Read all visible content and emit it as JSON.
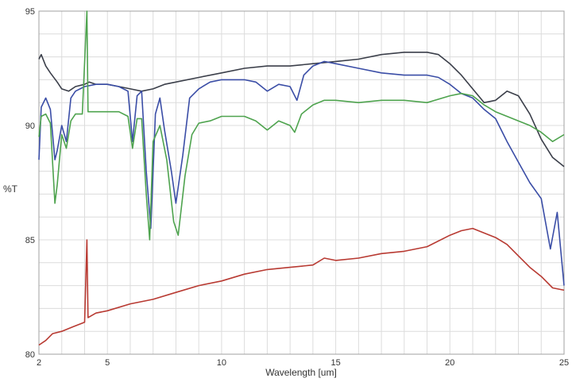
{
  "chart_data": {
    "type": "line",
    "title": "",
    "xlabel": "Wavelength [um]",
    "ylabel": "%T",
    "xlim": [
      2,
      25
    ],
    "ylim": [
      80,
      95
    ],
    "x_ticks": [
      2,
      5,
      10,
      15,
      20,
      25
    ],
    "y_ticks": [
      80,
      85,
      90,
      95
    ],
    "grid": true,
    "series": [
      {
        "color": "#3b3f4a",
        "points": [
          [
            2,
            92.9
          ],
          [
            2.1,
            93.1
          ],
          [
            2.3,
            92.6
          ],
          [
            2.5,
            92.3
          ],
          [
            2.8,
            91.9
          ],
          [
            3.0,
            91.6
          ],
          [
            3.3,
            91.5
          ],
          [
            3.6,
            91.7
          ],
          [
            4.0,
            91.8
          ],
          [
            4.2,
            91.9
          ],
          [
            4.5,
            91.8
          ],
          [
            5.0,
            91.8
          ],
          [
            5.5,
            91.7
          ],
          [
            6.0,
            91.6
          ],
          [
            6.5,
            91.5
          ],
          [
            7.0,
            91.6
          ],
          [
            7.5,
            91.8
          ],
          [
            8.0,
            91.9
          ],
          [
            9.0,
            92.1
          ],
          [
            10.0,
            92.3
          ],
          [
            11.0,
            92.5
          ],
          [
            12.0,
            92.6
          ],
          [
            13.0,
            92.6
          ],
          [
            14.0,
            92.7
          ],
          [
            15.0,
            92.8
          ],
          [
            16.0,
            92.9
          ],
          [
            17.0,
            93.1
          ],
          [
            18.0,
            93.2
          ],
          [
            19.0,
            93.2
          ],
          [
            19.5,
            93.1
          ],
          [
            20.0,
            92.7
          ],
          [
            20.5,
            92.2
          ],
          [
            21.0,
            91.6
          ],
          [
            21.5,
            91.0
          ],
          [
            22.0,
            91.1
          ],
          [
            22.5,
            91.5
          ],
          [
            23.0,
            91.3
          ],
          [
            23.5,
            90.5
          ],
          [
            24.0,
            89.4
          ],
          [
            24.5,
            88.6
          ],
          [
            25.0,
            88.2
          ]
        ]
      },
      {
        "color": "#3a4da6",
        "points": [
          [
            2,
            88.5
          ],
          [
            2.1,
            90.8
          ],
          [
            2.3,
            91.2
          ],
          [
            2.5,
            90.7
          ],
          [
            2.7,
            88.5
          ],
          [
            2.8,
            88.9
          ],
          [
            3.0,
            90.0
          ],
          [
            3.2,
            89.3
          ],
          [
            3.4,
            91.2
          ],
          [
            3.6,
            91.5
          ],
          [
            4.0,
            91.7
          ],
          [
            4.5,
            91.8
          ],
          [
            5.0,
            91.8
          ],
          [
            5.5,
            91.7
          ],
          [
            5.9,
            91.5
          ],
          [
            6.1,
            89.3
          ],
          [
            6.3,
            91.3
          ],
          [
            6.5,
            91.5
          ],
          [
            6.7,
            88.0
          ],
          [
            6.9,
            85.5
          ],
          [
            7.1,
            90.5
          ],
          [
            7.3,
            91.2
          ],
          [
            7.5,
            89.8
          ],
          [
            7.8,
            88.0
          ],
          [
            8.0,
            86.6
          ],
          [
            8.3,
            88.7
          ],
          [
            8.6,
            91.2
          ],
          [
            9.0,
            91.6
          ],
          [
            9.5,
            91.9
          ],
          [
            10.0,
            92.0
          ],
          [
            11.0,
            92.0
          ],
          [
            11.5,
            91.9
          ],
          [
            12.0,
            91.5
          ],
          [
            12.5,
            91.8
          ],
          [
            13.0,
            91.7
          ],
          [
            13.3,
            91.1
          ],
          [
            13.6,
            92.2
          ],
          [
            14.0,
            92.6
          ],
          [
            14.5,
            92.8
          ],
          [
            15.0,
            92.7
          ],
          [
            16.0,
            92.5
          ],
          [
            17.0,
            92.3
          ],
          [
            18.0,
            92.2
          ],
          [
            19.0,
            92.2
          ],
          [
            19.5,
            92.1
          ],
          [
            20.0,
            91.8
          ],
          [
            20.5,
            91.4
          ],
          [
            21.0,
            91.2
          ],
          [
            21.5,
            90.7
          ],
          [
            22.0,
            90.3
          ],
          [
            22.5,
            89.3
          ],
          [
            23.0,
            88.4
          ],
          [
            23.5,
            87.5
          ],
          [
            24.0,
            86.8
          ],
          [
            24.4,
            84.6
          ],
          [
            24.7,
            86.2
          ],
          [
            25.0,
            83.0
          ]
        ]
      },
      {
        "color": "#4ea34e",
        "points": [
          [
            2,
            89.5
          ],
          [
            2.1,
            90.4
          ],
          [
            2.3,
            90.5
          ],
          [
            2.5,
            90.1
          ],
          [
            2.7,
            86.6
          ],
          [
            2.8,
            87.4
          ],
          [
            3.0,
            89.6
          ],
          [
            3.2,
            89.0
          ],
          [
            3.4,
            90.2
          ],
          [
            3.6,
            90.5
          ],
          [
            3.9,
            90.5
          ],
          [
            4.1,
            95.0
          ],
          [
            4.15,
            90.6
          ],
          [
            4.5,
            90.6
          ],
          [
            5.0,
            90.6
          ],
          [
            5.5,
            90.6
          ],
          [
            5.9,
            90.4
          ],
          [
            6.1,
            89.0
          ],
          [
            6.3,
            90.3
          ],
          [
            6.5,
            90.3
          ],
          [
            6.7,
            87.0
          ],
          [
            6.85,
            85.0
          ],
          [
            7.0,
            89.3
          ],
          [
            7.3,
            90.0
          ],
          [
            7.6,
            88.5
          ],
          [
            7.9,
            85.8
          ],
          [
            8.1,
            85.2
          ],
          [
            8.4,
            87.8
          ],
          [
            8.7,
            89.6
          ],
          [
            9.0,
            90.1
          ],
          [
            9.5,
            90.2
          ],
          [
            10.0,
            90.4
          ],
          [
            11.0,
            90.4
          ],
          [
            11.5,
            90.2
          ],
          [
            12.0,
            89.8
          ],
          [
            12.5,
            90.2
          ],
          [
            13.0,
            90.0
          ],
          [
            13.2,
            89.7
          ],
          [
            13.5,
            90.5
          ],
          [
            14.0,
            90.9
          ],
          [
            14.5,
            91.1
          ],
          [
            15.0,
            91.1
          ],
          [
            16.0,
            91.0
          ],
          [
            17.0,
            91.1
          ],
          [
            18.0,
            91.1
          ],
          [
            19.0,
            91.0
          ],
          [
            20.0,
            91.3
          ],
          [
            20.5,
            91.4
          ],
          [
            21.0,
            91.3
          ],
          [
            21.5,
            90.9
          ],
          [
            22.0,
            90.6
          ],
          [
            22.5,
            90.4
          ],
          [
            23.0,
            90.2
          ],
          [
            23.5,
            90.0
          ],
          [
            24.0,
            89.7
          ],
          [
            24.5,
            89.3
          ],
          [
            25.0,
            89.6
          ]
        ]
      },
      {
        "color": "#b83a32",
        "points": [
          [
            2,
            80.4
          ],
          [
            2.3,
            80.6
          ],
          [
            2.6,
            80.9
          ],
          [
            3.0,
            81.0
          ],
          [
            3.5,
            81.2
          ],
          [
            4.0,
            81.4
          ],
          [
            4.1,
            85.0
          ],
          [
            4.15,
            81.6
          ],
          [
            4.5,
            81.8
          ],
          [
            5.0,
            81.9
          ],
          [
            6.0,
            82.2
          ],
          [
            7.0,
            82.4
          ],
          [
            8.0,
            82.7
          ],
          [
            9.0,
            83.0
          ],
          [
            10.0,
            83.2
          ],
          [
            11.0,
            83.5
          ],
          [
            12.0,
            83.7
          ],
          [
            13.0,
            83.8
          ],
          [
            14.0,
            83.9
          ],
          [
            14.5,
            84.2
          ],
          [
            15.0,
            84.1
          ],
          [
            16.0,
            84.2
          ],
          [
            17.0,
            84.4
          ],
          [
            18.0,
            84.5
          ],
          [
            19.0,
            84.7
          ],
          [
            20.0,
            85.2
          ],
          [
            20.5,
            85.4
          ],
          [
            21.0,
            85.5
          ],
          [
            21.5,
            85.3
          ],
          [
            22.0,
            85.1
          ],
          [
            22.5,
            84.8
          ],
          [
            23.0,
            84.3
          ],
          [
            23.5,
            83.8
          ],
          [
            24.0,
            83.4
          ],
          [
            24.5,
            82.9
          ],
          [
            25.0,
            82.8
          ]
        ]
      }
    ]
  }
}
